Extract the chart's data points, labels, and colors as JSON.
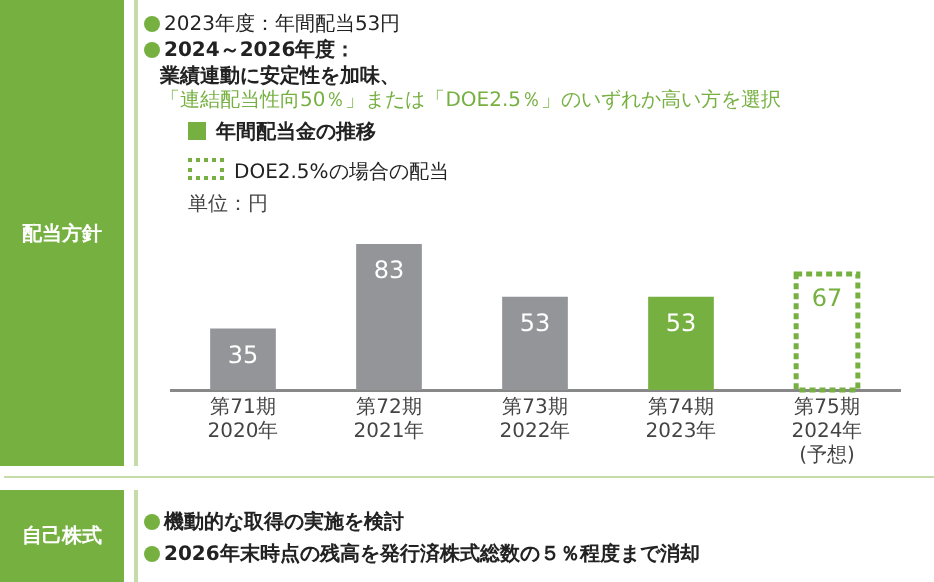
{
  "chart_data": {
    "type": "bar",
    "ylabel": "単位：円",
    "categories": [
      "第71期\n2020年",
      "第72期\n2021年",
      "第73期\n2022年",
      "第74期\n2023年",
      "第75期\n2024年\n(予想)"
    ],
    "series": [
      {
        "name": "年間配当金の推移",
        "color": "#76b041",
        "colors": [
          "#939598",
          "#939598",
          "#939598",
          "#76b041",
          null
        ],
        "values": [
          35,
          83,
          53,
          53,
          null
        ]
      },
      {
        "name": "DOE2.5%の場合の配当",
        "color": "#76b041",
        "line_style": "dotted",
        "values": [
          null,
          null,
          null,
          null,
          67
        ]
      }
    ],
    "data_labels": true,
    "legend": "top left",
    "grid": false,
    "annotations": [
      "配当方針",
      "2023年度：年間配当53円",
      "2024～2026年度：",
      "業績連動に安定性を加味、",
      "「連結配当性向50％」または「DOE2.5％」のいずれか高い方を選択",
      "自己株式",
      "機動的な取得の実施を検討",
      "2026年末時点の残高を発行済株式総数の５％程度まで消却"
    ]
  }
}
